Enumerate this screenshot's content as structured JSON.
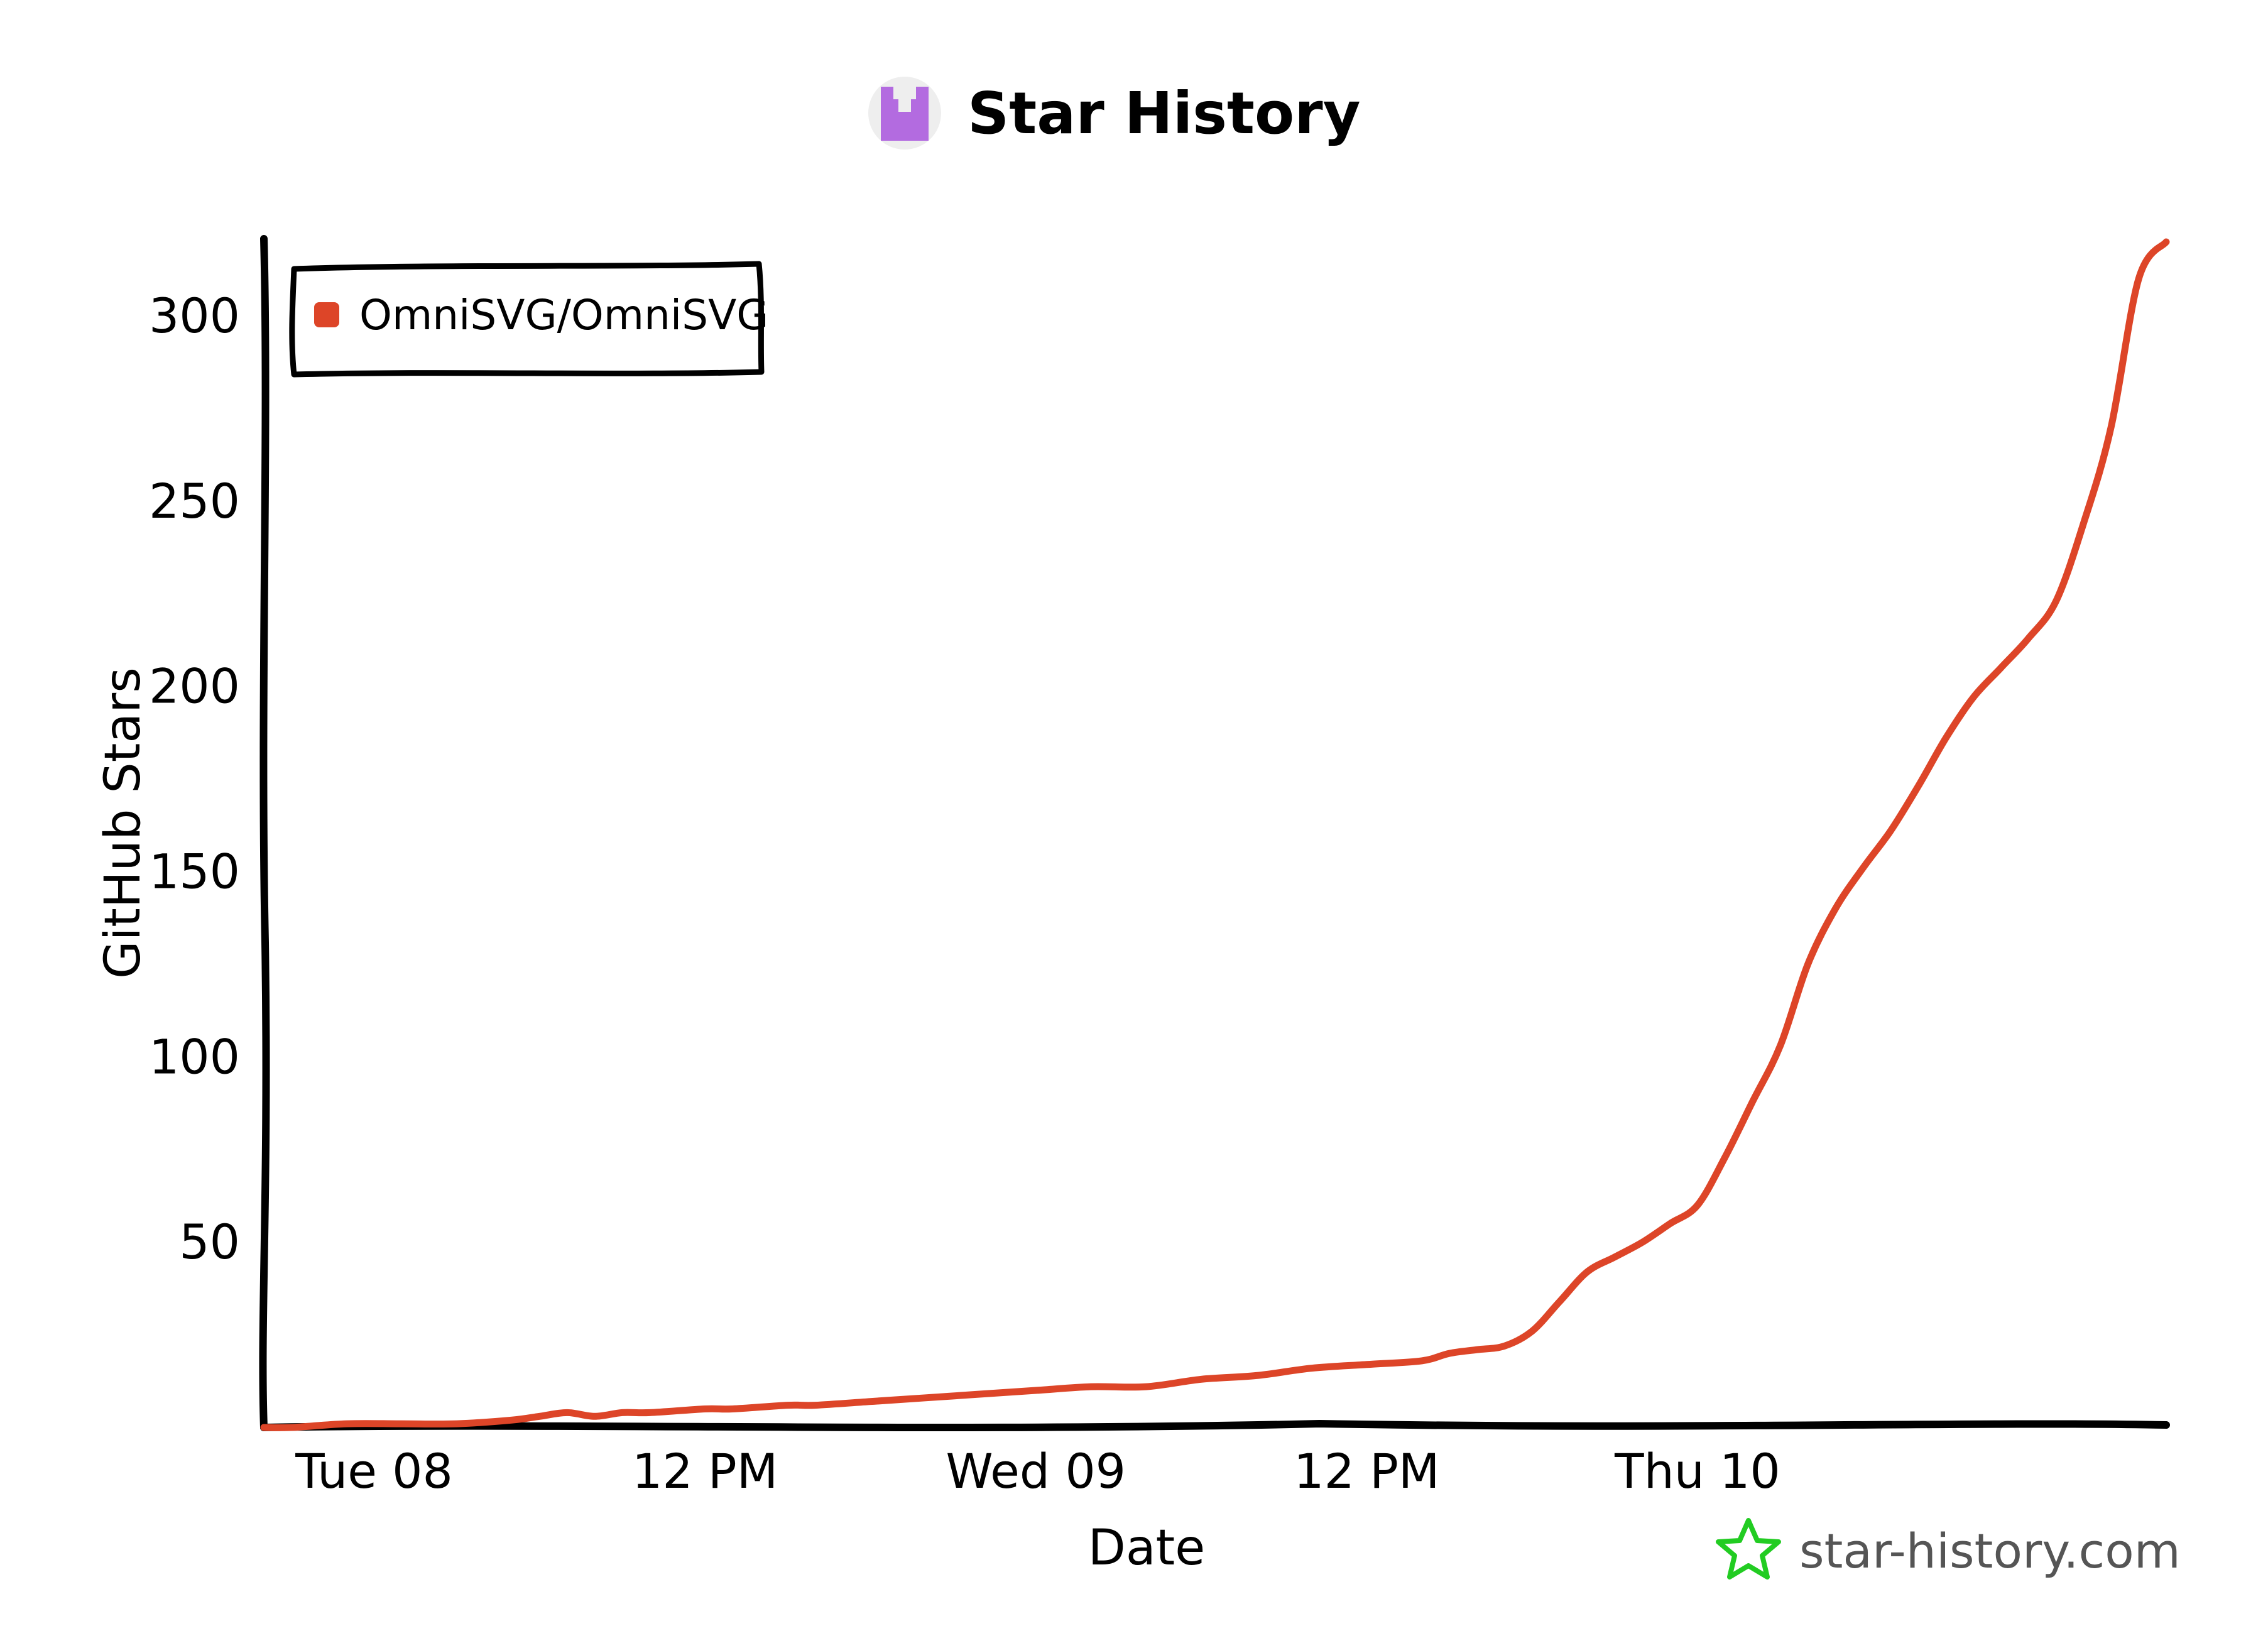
{
  "chart_data": {
    "type": "line",
    "title": "Star History",
    "xlabel": "Date",
    "ylabel": "GitHub Stars",
    "x_ticks": [
      "Tue 08",
      "12 PM",
      "Wed 09",
      "12 PM",
      "Thu 10"
    ],
    "y_ticks": [
      50,
      100,
      150,
      200,
      250,
      300
    ],
    "ylim": [
      0,
      320
    ],
    "xlim": [
      "2025-04-07T20:00",
      "2025-04-10T17:00"
    ],
    "legend_position": "top-left",
    "grid": false,
    "series": [
      {
        "name": "OmniSVG/OmniSVG",
        "color": "#dd4528",
        "x": [
          "2025-04-07T20:00",
          "2025-04-07T21:00",
          "2025-04-07T23:00",
          "2025-04-08T01:00",
          "2025-04-08T03:00",
          "2025-04-08T05:00",
          "2025-04-08T06:00",
          "2025-04-08T07:00",
          "2025-04-08T08:00",
          "2025-04-08T09:00",
          "2025-04-08T10:00",
          "2025-04-08T12:00",
          "2025-04-08T13:00",
          "2025-04-08T15:00",
          "2025-04-08T16:00",
          "2025-04-08T18:00",
          "2025-04-08T20:00",
          "2025-04-08T22:00",
          "2025-04-09T00:00",
          "2025-04-09T02:00",
          "2025-04-09T04:00",
          "2025-04-09T06:00",
          "2025-04-09T08:00",
          "2025-04-09T10:00",
          "2025-04-09T12:00",
          "2025-04-09T14:00",
          "2025-04-09T15:00",
          "2025-04-09T16:00",
          "2025-04-09T17:00",
          "2025-04-09T18:00",
          "2025-04-09T19:00",
          "2025-04-09T20:00",
          "2025-04-09T21:00",
          "2025-04-09T22:00",
          "2025-04-09T23:00",
          "2025-04-10T00:00",
          "2025-04-10T01:00",
          "2025-04-10T02:00",
          "2025-04-10T03:00",
          "2025-04-10T04:00",
          "2025-04-10T05:00",
          "2025-04-10T06:00",
          "2025-04-10T07:00",
          "2025-04-10T08:00",
          "2025-04-10T09:00",
          "2025-04-10T10:00",
          "2025-04-10T11:00",
          "2025-04-10T12:00",
          "2025-04-10T13:00",
          "2025-04-10T14:00",
          "2025-04-10T15:00",
          "2025-04-10T16:00",
          "2025-04-10T17:00"
        ],
        "y": [
          0,
          0,
          1,
          1,
          1,
          2,
          3,
          4,
          3,
          4,
          4,
          5,
          5,
          6,
          6,
          7,
          8,
          9,
          10,
          11,
          11,
          13,
          14,
          16,
          17,
          18,
          20,
          21,
          22,
          26,
          34,
          42,
          46,
          50,
          55,
          60,
          73,
          88,
          103,
          125,
          140,
          151,
          161,
          173,
          186,
          197,
          205,
          213,
          223,
          244,
          270,
          310,
          320
        ]
      }
    ]
  },
  "watermark": "star-history.com",
  "colors": {
    "line": "#dd4528",
    "logo": "#b36be0",
    "watermark_star": "#22cc22"
  },
  "icons": {
    "title_logo": "star-history-logo-icon",
    "watermark_star": "star-icon"
  }
}
